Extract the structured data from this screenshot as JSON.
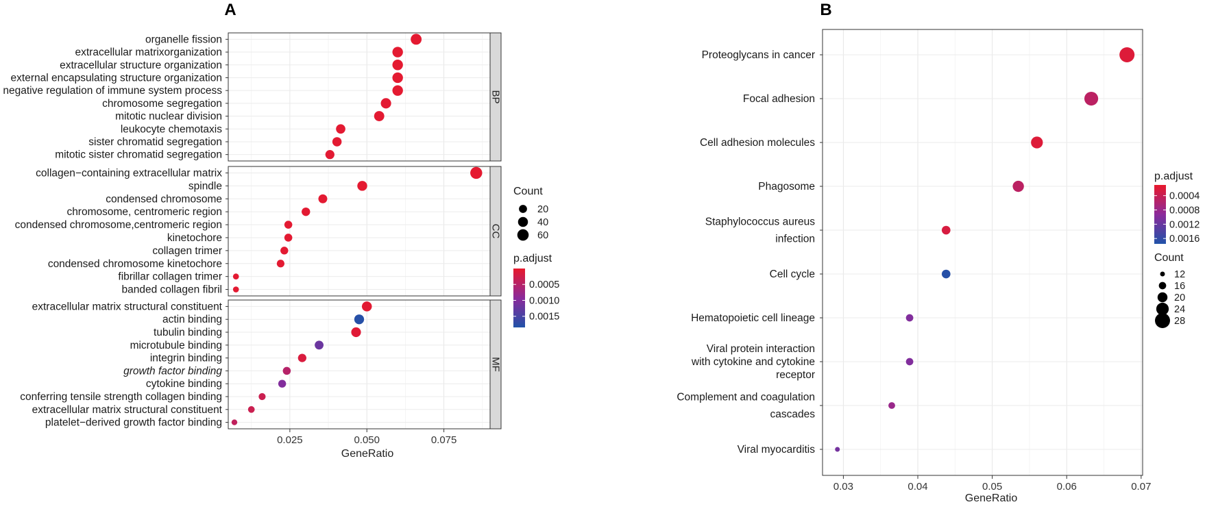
{
  "chart_data": [
    {
      "panel": "A",
      "type": "scatter",
      "subtype": "faceted-dotplot",
      "xlabel": "GeneRatio",
      "xlim": [
        0.005,
        0.09
      ],
      "xticks": [
        0.025,
        0.05,
        0.075
      ],
      "xtick_labels": [
        "0.025",
        "0.050",
        "0.075"
      ],
      "grid": true,
      "size_legend": {
        "title": "Count",
        "values": [
          20,
          40,
          60
        ],
        "labels": [
          "20",
          "40",
          "60"
        ]
      },
      "color_legend": {
        "title": "p.adjust",
        "range": [
          0.0,
          0.00185
        ],
        "ticks": [
          0.0005,
          0.001,
          0.0015
        ],
        "labels": [
          "0.0005",
          "0.0010",
          "0.0015"
        ],
        "low_color": "#e8192c",
        "mid_color": "#8b2a9b",
        "high_color": "#2052a8"
      },
      "facets": [
        {
          "name": "BP",
          "rows": [
            {
              "term": "organelle fission",
              "x": 0.066,
              "count": 52,
              "p": 4e-05
            },
            {
              "term": "extracellular matrixorganization",
              "x": 0.06,
              "count": 48,
              "p": 4e-05
            },
            {
              "term": "extracellular structure organization",
              "x": 0.06,
              "count": 48,
              "p": 4e-05
            },
            {
              "term": "external encapsulating structure organization",
              "x": 0.06,
              "count": 48,
              "p": 4e-05
            },
            {
              "term": "negative regulation of immune system process",
              "x": 0.06,
              "count": 48,
              "p": 4e-05
            },
            {
              "term": "chromosome segregation",
              "x": 0.0562,
              "count": 45,
              "p": 5e-05
            },
            {
              "term": "mitotic nuclear division",
              "x": 0.054,
              "count": 43,
              "p": 5e-05
            },
            {
              "term": "leukocyte chemotaxis",
              "x": 0.0415,
              "count": 33,
              "p": 5e-05
            },
            {
              "term": "sister chromatid segregation",
              "x": 0.0403,
              "count": 32,
              "p": 5e-05
            },
            {
              "term": "mitotic sister chromatid segregation",
              "x": 0.038,
              "count": 30,
              "p": 6e-05
            }
          ]
        },
        {
          "name": "CC",
          "rows": [
            {
              "term": "collagen−containing extracellular matrix",
              "x": 0.0855,
              "count": 68,
              "p": 3e-05
            },
            {
              "term": "spindle",
              "x": 0.0485,
              "count": 39,
              "p": 4e-05
            },
            {
              "term": "condensed chromosome",
              "x": 0.0357,
              "count": 28,
              "p": 5e-05
            },
            {
              "term": "chromosome, centromeric region",
              "x": 0.0302,
              "count": 24,
              "p": 5e-05
            },
            {
              "term": "condensed chromosome,centromeric region",
              "x": 0.0245,
              "count": 19,
              "p": 5e-05
            },
            {
              "term": "kinetochore",
              "x": 0.0245,
              "count": 19,
              "p": 5e-05
            },
            {
              "term": "collagen trimer",
              "x": 0.0232,
              "count": 18,
              "p": 5e-05
            },
            {
              "term": "condensed chromosome kinetochore",
              "x": 0.022,
              "count": 17,
              "p": 5e-05
            },
            {
              "term": "fibrillar collagen trimer",
              "x": 0.0075,
              "count": 6,
              "p": 5e-05
            },
            {
              "term": "banded collagen fibril",
              "x": 0.0075,
              "count": 6,
              "p": 5e-05
            }
          ]
        },
        {
          "name": "MF",
          "rows": [
            {
              "term": "extracellular matrix structural constituent",
              "x": 0.05,
              "count": 40,
              "p": 6e-05
            },
            {
              "term": "actin binding",
              "x": 0.0475,
              "count": 38,
              "p": 0.0018
            },
            {
              "term": "tubulin binding",
              "x": 0.0465,
              "count": 37,
              "p": 8e-05
            },
            {
              "term": "microtubule binding",
              "x": 0.0345,
              "count": 27,
              "p": 0.0012
            },
            {
              "term": "integrin binding",
              "x": 0.029,
              "count": 23,
              "p": 0.00015
            },
            {
              "term": "growth factor binding",
              "x": 0.024,
              "count": 19,
              "p": 0.0005
            },
            {
              "term": "cytokine binding",
              "x": 0.0225,
              "count": 18,
              "p": 0.001
            },
            {
              "term": "conferring tensile strength collagen binding",
              "x": 0.016,
              "count": 12,
              "p": 0.0003
            },
            {
              "term": "extracellular matrix structural constituent",
              "x": 0.0125,
              "count": 10,
              "p": 0.0003
            },
            {
              "term": "platelet−derived growth factor binding",
              "x": 0.007,
              "count": 5,
              "p": 0.0004
            }
          ]
        }
      ]
    },
    {
      "panel": "B",
      "type": "scatter",
      "subtype": "dotplot",
      "xlabel": "GeneRatio",
      "xlim": [
        0.0272,
        0.0702
      ],
      "xticks": [
        0.03,
        0.04,
        0.05,
        0.06,
        0.07
      ],
      "xtick_labels": [
        "0.03",
        "0.04",
        "0.05",
        "0.06",
        "0.07"
      ],
      "grid": true,
      "color_legend": {
        "title": "p.adjust",
        "range": [
          0.0001,
          0.00175
        ],
        "ticks": [
          0.0004,
          0.0008,
          0.0012,
          0.0016
        ],
        "labels": [
          "0.0004",
          "0.0008",
          "0.0012",
          "0.0016"
        ],
        "low_color": "#e8192c",
        "mid_color": "#8b2a9b",
        "high_color": "#2052a8"
      },
      "size_legend": {
        "title": "Count",
        "values": [
          12,
          16,
          20,
          24,
          28
        ],
        "labels": [
          "12",
          "16",
          "20",
          "24",
          "28"
        ]
      },
      "rows": [
        {
          "term_lines": [
            "Proteoglycans in cancer"
          ],
          "x": 0.0681,
          "count": 28,
          "p": 0.0002
        },
        {
          "term_lines": [
            "Focal adhesion"
          ],
          "x": 0.0633,
          "count": 26,
          "p": 0.0005
        },
        {
          "term_lines": [
            "Cell adhesion molecules"
          ],
          "x": 0.056,
          "count": 23,
          "p": 0.0002
        },
        {
          "term_lines": [
            "Phagosome"
          ],
          "x": 0.0535,
          "count": 22,
          "p": 0.0005
        },
        {
          "term_lines": [
            "Staphylococcus aureus",
            "infection"
          ],
          "x": 0.0438,
          "count": 18,
          "p": 0.00025
        },
        {
          "term_lines": [
            "Cell cycle"
          ],
          "x": 0.0438,
          "count": 18,
          "p": 0.0017
        },
        {
          "term_lines": [
            "Hematopoietic cell lineage"
          ],
          "x": 0.0389,
          "count": 16,
          "p": 0.001
        },
        {
          "term_lines": [
            "Viral protein interaction",
            "with cytokine and cytokine",
            "receptor"
          ],
          "x": 0.0389,
          "count": 16,
          "p": 0.001
        },
        {
          "term_lines": [
            "Complement and coagulation",
            "cascades"
          ],
          "x": 0.0365,
          "count": 15,
          "p": 0.0008
        },
        {
          "term_lines": [
            "Viral myocarditis"
          ],
          "x": 0.0292,
          "count": 12,
          "p": 0.0011
        }
      ]
    }
  ]
}
